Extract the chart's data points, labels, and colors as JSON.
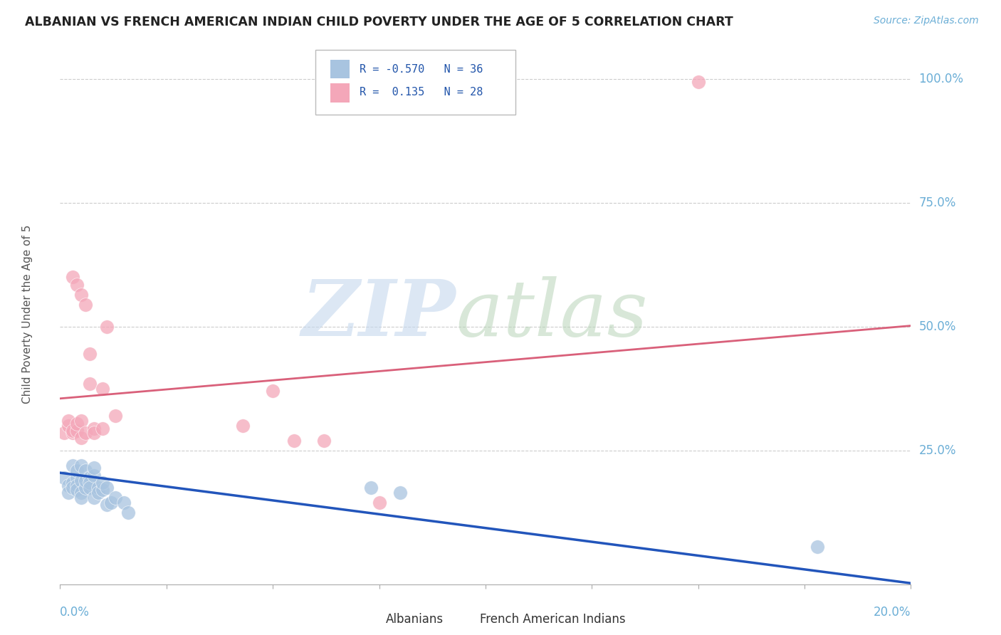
{
  "title": "ALBANIAN VS FRENCH AMERICAN INDIAN CHILD POVERTY UNDER THE AGE OF 5 CORRELATION CHART",
  "source": "Source: ZipAtlas.com",
  "ylabel": "Child Poverty Under the Age of 5",
  "legend_label1": "Albanians",
  "legend_label2": "French American Indians",
  "R1": -0.57,
  "N1": 36,
  "R2": 0.135,
  "N2": 28,
  "color_blue": "#a8c4e0",
  "color_pink": "#f4a7b9",
  "color_blue_line": "#2255bb",
  "color_pink_line": "#d9607a",
  "color_axis_labels": "#6baed6",
  "xmin": 0.0,
  "xmax": 0.2,
  "ymin": -0.02,
  "ymax": 1.07,
  "ytick_labels": [
    "100.0%",
    "75.0%",
    "50.0%",
    "25.0%"
  ],
  "ytick_values": [
    1.0,
    0.75,
    0.5,
    0.25
  ],
  "blue_trend_x": [
    0.0,
    0.2
  ],
  "blue_trend_y": [
    0.205,
    -0.018
  ],
  "pink_trend_x": [
    0.0,
    0.2
  ],
  "pink_trend_y": [
    0.355,
    0.502
  ],
  "albanian_x": [
    0.001,
    0.002,
    0.002,
    0.003,
    0.003,
    0.003,
    0.004,
    0.004,
    0.004,
    0.004,
    0.005,
    0.005,
    0.005,
    0.005,
    0.006,
    0.006,
    0.006,
    0.007,
    0.007,
    0.007,
    0.008,
    0.008,
    0.008,
    0.009,
    0.009,
    0.01,
    0.01,
    0.011,
    0.011,
    0.012,
    0.013,
    0.015,
    0.016,
    0.073,
    0.08,
    0.178
  ],
  "albanian_y": [
    0.195,
    0.18,
    0.165,
    0.185,
    0.175,
    0.22,
    0.195,
    0.21,
    0.18,
    0.17,
    0.19,
    0.165,
    0.155,
    0.22,
    0.175,
    0.19,
    0.21,
    0.195,
    0.185,
    0.175,
    0.155,
    0.2,
    0.215,
    0.175,
    0.165,
    0.17,
    0.185,
    0.14,
    0.175,
    0.145,
    0.155,
    0.145,
    0.125,
    0.175,
    0.165,
    0.055
  ],
  "french_x": [
    0.001,
    0.002,
    0.002,
    0.003,
    0.003,
    0.004,
    0.004,
    0.005,
    0.005,
    0.006,
    0.007,
    0.008,
    0.008,
    0.01,
    0.01,
    0.011,
    0.013,
    0.043,
    0.05,
    0.055,
    0.062,
    0.075,
    0.15,
    0.003,
    0.004,
    0.005,
    0.006,
    0.007
  ],
  "french_y": [
    0.285,
    0.3,
    0.31,
    0.285,
    0.29,
    0.29,
    0.305,
    0.31,
    0.275,
    0.285,
    0.385,
    0.295,
    0.285,
    0.375,
    0.295,
    0.5,
    0.32,
    0.3,
    0.37,
    0.27,
    0.27,
    0.145,
    0.995,
    0.6,
    0.585,
    0.565,
    0.545,
    0.445
  ]
}
